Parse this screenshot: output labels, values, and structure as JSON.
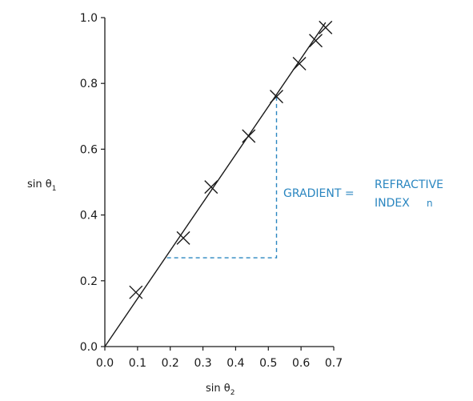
{
  "chart_data": {
    "type": "scatter",
    "title": "",
    "xlabel": {
      "main": "sin θ",
      "sub": "2"
    },
    "ylabel": {
      "main": "sin θ",
      "sub": "1"
    },
    "xlim": [
      0,
      0.7
    ],
    "ylim": [
      0,
      1.0
    ],
    "x_ticks": [
      "0.0",
      "0.1",
      "0.2",
      "0.3",
      "0.4",
      "0.5",
      "0.6",
      "0.7"
    ],
    "y_ticks": [
      "0.0",
      "0.2",
      "0.4",
      "0.6",
      "0.8",
      "1.0"
    ],
    "grid": false,
    "series": [
      {
        "marker": "x",
        "points": [
          {
            "x": 0.095,
            "y": 0.165
          },
          {
            "x": 0.24,
            "y": 0.33
          },
          {
            "x": 0.325,
            "y": 0.485
          },
          {
            "x": 0.44,
            "y": 0.64
          },
          {
            "x": 0.525,
            "y": 0.76
          },
          {
            "x": 0.595,
            "y": 0.86
          },
          {
            "x": 0.645,
            "y": 0.93
          },
          {
            "x": 0.675,
            "y": 0.97
          }
        ]
      }
    ],
    "best_fit_line": {
      "from": {
        "x": 0,
        "y": 0
      },
      "to": {
        "x": 0.675,
        "y": 0.985
      }
    },
    "gradient_triangle": {
      "corner": {
        "x": 0.525,
        "y": 0.27
      },
      "x1": 0.19,
      "y2": 0.76
    },
    "annotation": {
      "lhs": "GRADIENT =",
      "line1": "REFRACTIVE",
      "line2": "INDEX",
      "symbol": "n",
      "color": "#2a86c0"
    }
  }
}
